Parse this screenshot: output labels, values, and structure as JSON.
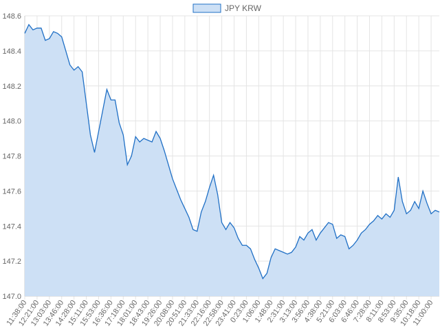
{
  "chart_data": {
    "type": "line",
    "area": true,
    "categories": [
      "11:38:00",
      null,
      null,
      "12:21:00",
      null,
      null,
      "13:03:00",
      null,
      null,
      "13:46:00",
      null,
      null,
      "14:28:00",
      null,
      null,
      "15:11:00",
      null,
      null,
      "15:53:00",
      null,
      null,
      "16:36:00",
      null,
      null,
      "17:18:00",
      null,
      null,
      "18:01:00",
      null,
      null,
      "18:43:00",
      null,
      null,
      "19:26:00",
      null,
      null,
      "20:08:00",
      null,
      null,
      "20:51:00",
      null,
      null,
      "21:33:00",
      null,
      null,
      "22:16:00",
      null,
      null,
      "22:58:00",
      null,
      null,
      "23:41:00",
      null,
      null,
      "0:23:00",
      null,
      null,
      "1:06:00",
      null,
      null,
      "1:48:00",
      null,
      null,
      "2:31:00",
      null,
      null,
      "3:13:00",
      null,
      null,
      "3:56:00",
      null,
      null,
      "4:38:00",
      null,
      null,
      "5:21:00",
      null,
      null,
      "6:03:00",
      null,
      null,
      "6:46:00",
      null,
      null,
      "7:28:00",
      null,
      null,
      "8:11:00",
      null,
      null,
      "8:53:00",
      null,
      null,
      "9:35:00",
      null,
      null,
      "10:18:00",
      null,
      null,
      "11:00:00",
      null,
      null
    ],
    "series": [
      {
        "name": "JPY KRW",
        "color": "#1f6fc5",
        "fill": "#cde0f5",
        "values": [
          148.5,
          148.55,
          148.52,
          148.53,
          148.53,
          148.46,
          148.47,
          148.51,
          148.5,
          148.48,
          148.4,
          148.32,
          148.29,
          148.31,
          148.28,
          148.1,
          147.92,
          147.82,
          147.94,
          148.06,
          148.18,
          148.12,
          148.12,
          147.99,
          147.92,
          147.75,
          147.8,
          147.91,
          147.88,
          147.9,
          147.89,
          147.88,
          147.94,
          147.9,
          147.83,
          147.75,
          147.67,
          147.61,
          147.55,
          147.5,
          147.45,
          147.38,
          147.37,
          147.48,
          147.54,
          147.62,
          147.69,
          147.58,
          147.42,
          147.38,
          147.42,
          147.39,
          147.33,
          147.29,
          147.29,
          147.27,
          147.21,
          147.16,
          147.1,
          147.13,
          147.22,
          147.27,
          147.26,
          147.25,
          147.24,
          147.25,
          147.28,
          147.34,
          147.32,
          147.36,
          147.38,
          147.32,
          147.36,
          147.39,
          147.42,
          147.41,
          147.33,
          147.35,
          147.34,
          147.27,
          147.29,
          147.32,
          147.36,
          147.38,
          147.41,
          147.43,
          147.46,
          147.44,
          147.47,
          147.45,
          147.49,
          147.68,
          147.54,
          147.47,
          147.49,
          147.54,
          147.5,
          147.6,
          147.53,
          147.47,
          147.49,
          147.48
        ]
      }
    ],
    "ylim": [
      147.0,
      148.6
    ],
    "yticks": [
      {
        "value": 147.0,
        "label": "147.0"
      },
      147.2,
      147.4,
      147.6,
      147.8,
      {
        "value": 148.0,
        "label": "148.0"
      },
      148.2,
      148.4,
      148.6
    ],
    "grid": true,
    "legend": "top"
  }
}
